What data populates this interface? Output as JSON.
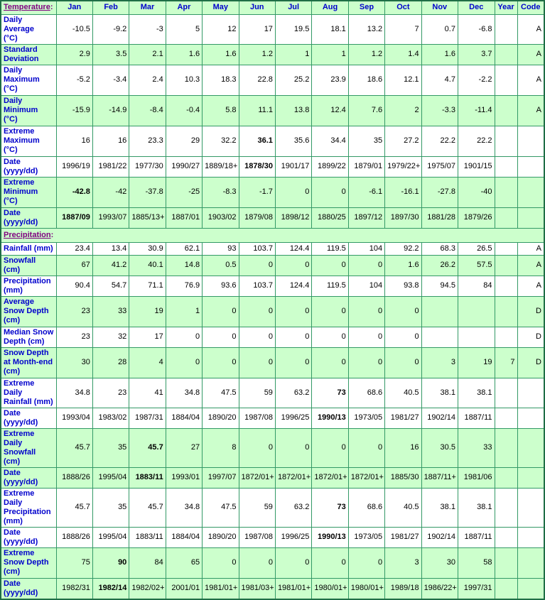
{
  "colors": {
    "row_alt_background": "#CCFFCC",
    "grid_border": "#339966",
    "outer_border": "#1F6E46",
    "row_label_text": "#0000CC",
    "column_header_text": "#0000CC",
    "section_link_text": "#800080",
    "value_text": "#000000"
  },
  "table": {
    "corner": {
      "label": "Temperature",
      "suffix": ":"
    },
    "columns": [
      "Jan",
      "Feb",
      "Mar",
      "Apr",
      "May",
      "Jun",
      "Jul",
      "Aug",
      "Sep",
      "Oct",
      "Nov",
      "Dec",
      "Year",
      "Code"
    ],
    "rows": [
      {
        "label_lines": [
          "Daily Average",
          "(°C)"
        ],
        "shade": false,
        "values": [
          "-10.5",
          "-9.2",
          "-3",
          "5",
          "12",
          "17",
          "19.5",
          "18.1",
          "13.2",
          "7",
          "0.7",
          "-6.8",
          "",
          "A"
        ],
        "bold": []
      },
      {
        "label_lines": [
          "Standard",
          "Deviation"
        ],
        "shade": true,
        "values": [
          "2.9",
          "3.5",
          "2.1",
          "1.6",
          "1.6",
          "1.2",
          "1",
          "1",
          "1.2",
          "1.4",
          "1.6",
          "3.7",
          "",
          "A"
        ],
        "bold": []
      },
      {
        "label_lines": [
          "Daily",
          "Maximum",
          "(°C)"
        ],
        "shade": false,
        "values": [
          "-5.2",
          "-3.4",
          "2.4",
          "10.3",
          "18.3",
          "22.8",
          "25.2",
          "23.9",
          "18.6",
          "12.1",
          "4.7",
          "-2.2",
          "",
          "A"
        ],
        "bold": []
      },
      {
        "label_lines": [
          "Daily",
          "Minimum",
          "(°C)"
        ],
        "shade": true,
        "values": [
          "-15.9",
          "-14.9",
          "-8.4",
          "-0.4",
          "5.8",
          "11.1",
          "13.8",
          "12.4",
          "7.6",
          "2",
          "-3.3",
          "-11.4",
          "",
          "A"
        ],
        "bold": []
      },
      {
        "label_lines": [
          "Extreme",
          "Maximum",
          "(°C)"
        ],
        "shade": false,
        "values": [
          "16",
          "16",
          "23.3",
          "29",
          "32.2",
          "36.1",
          "35.6",
          "34.4",
          "35",
          "27.2",
          "22.2",
          "22.2",
          "",
          ""
        ],
        "bold": [
          5
        ]
      },
      {
        "label_lines": [
          "Date",
          "(yyyy/dd)"
        ],
        "shade": false,
        "values": [
          "1996/19",
          "1981/22",
          "1977/30",
          "1990/27",
          "1889/18+",
          "1878/30",
          "1901/17",
          "1899/22",
          "1879/01",
          "1979/22+",
          "1975/07",
          "1901/15",
          "",
          ""
        ],
        "bold": [
          5
        ]
      },
      {
        "label_lines": [
          "Extreme",
          "Minimum",
          "(°C)"
        ],
        "shade": true,
        "values": [
          "-42.8",
          "-42",
          "-37.8",
          "-25",
          "-8.3",
          "-1.7",
          "0",
          "0",
          "-6.1",
          "-16.1",
          "-27.8",
          "-40",
          "",
          ""
        ],
        "bold": [
          0
        ]
      },
      {
        "label_lines": [
          "Date",
          "(yyyy/dd)"
        ],
        "shade": true,
        "values": [
          "1887/09",
          "1993/07",
          "1885/13+",
          "1887/01",
          "1903/02",
          "1879/08",
          "1898/12",
          "1880/25",
          "1897/12",
          "1897/30",
          "1881/28",
          "1879/26",
          "",
          ""
        ],
        "bold": [
          0
        ]
      },
      {
        "section": true,
        "label": "Precipitation",
        "suffix": ":"
      },
      {
        "label_lines": [
          "Rainfall (mm)"
        ],
        "shade": false,
        "values": [
          "23.4",
          "13.4",
          "30.9",
          "62.1",
          "93",
          "103.7",
          "124.4",
          "119.5",
          "104",
          "92.2",
          "68.3",
          "26.5",
          "",
          "A"
        ],
        "bold": []
      },
      {
        "label_lines": [
          "Snowfall",
          "(cm)"
        ],
        "shade": true,
        "values": [
          "67",
          "41.2",
          "40.1",
          "14.8",
          "0.5",
          "0",
          "0",
          "0",
          "0",
          "1.6",
          "26.2",
          "57.5",
          "",
          "A"
        ],
        "bold": []
      },
      {
        "label_lines": [
          "Precipitation",
          "(mm)"
        ],
        "shade": false,
        "values": [
          "90.4",
          "54.7",
          "71.1",
          "76.9",
          "93.6",
          "103.7",
          "124.4",
          "119.5",
          "104",
          "93.8",
          "94.5",
          "84",
          "",
          "A"
        ],
        "bold": []
      },
      {
        "label_lines": [
          "Average",
          "Snow Depth",
          "(cm)"
        ],
        "shade": true,
        "values": [
          "23",
          "33",
          "19",
          "1",
          "0",
          "0",
          "0",
          "0",
          "0",
          "0",
          "",
          "",
          "",
          "D"
        ],
        "bold": []
      },
      {
        "label_lines": [
          "Median Snow",
          "Depth (cm)"
        ],
        "shade": false,
        "values": [
          "23",
          "32",
          "17",
          "0",
          "0",
          "0",
          "0",
          "0",
          "0",
          "0",
          "",
          "",
          "",
          "D"
        ],
        "bold": []
      },
      {
        "label_lines": [
          "Snow Depth",
          "at Month-end",
          "(cm)"
        ],
        "shade": true,
        "values": [
          "30",
          "28",
          "4",
          "0",
          "0",
          "0",
          "0",
          "0",
          "0",
          "0",
          "3",
          "19",
          "7",
          "D"
        ],
        "bold": []
      },
      {
        "label_lines": [
          "Extreme Daily",
          "Rainfall (mm)"
        ],
        "shade": false,
        "values": [
          "34.8",
          "23",
          "41",
          "34.8",
          "47.5",
          "59",
          "63.2",
          "73",
          "68.6",
          "40.5",
          "38.1",
          "38.1",
          "",
          ""
        ],
        "bold": [
          7
        ]
      },
      {
        "label_lines": [
          "Date",
          "(yyyy/dd)"
        ],
        "shade": false,
        "values": [
          "1993/04",
          "1983/02",
          "1987/31",
          "1884/04",
          "1890/20",
          "1987/08",
          "1996/25",
          "1990/13",
          "1973/05",
          "1981/27",
          "1902/14",
          "1887/11",
          "",
          ""
        ],
        "bold": [
          7
        ]
      },
      {
        "label_lines": [
          "Extreme Daily",
          "Snowfall",
          "(cm)"
        ],
        "shade": true,
        "values": [
          "45.7",
          "35",
          "45.7",
          "27",
          "8",
          "0",
          "0",
          "0",
          "0",
          "16",
          "30.5",
          "33",
          "",
          ""
        ],
        "bold": [
          2
        ]
      },
      {
        "label_lines": [
          "Date",
          "(yyyy/dd)"
        ],
        "shade": true,
        "values": [
          "1888/26",
          "1995/04",
          "1883/11",
          "1993/01",
          "1997/07",
          "1872/01+",
          "1872/01+",
          "1872/01+",
          "1872/01+",
          "1885/30",
          "1887/11+",
          "1981/06",
          "",
          ""
        ],
        "bold": [
          2
        ]
      },
      {
        "label_lines": [
          "Extreme Daily",
          "Precipitation",
          "(mm)"
        ],
        "shade": false,
        "values": [
          "45.7",
          "35",
          "45.7",
          "34.8",
          "47.5",
          "59",
          "63.2",
          "73",
          "68.6",
          "40.5",
          "38.1",
          "38.1",
          "",
          ""
        ],
        "bold": [
          7
        ]
      },
      {
        "label_lines": [
          "Date",
          "(yyyy/dd)"
        ],
        "shade": false,
        "values": [
          "1888/26",
          "1995/04",
          "1883/11",
          "1884/04",
          "1890/20",
          "1987/08",
          "1996/25",
          "1990/13",
          "1973/05",
          "1981/27",
          "1902/14",
          "1887/11",
          "",
          ""
        ],
        "bold": [
          7
        ]
      },
      {
        "label_lines": [
          "Extreme",
          "Snow Depth",
          "(cm)"
        ],
        "shade": true,
        "values": [
          "75",
          "90",
          "84",
          "65",
          "0",
          "0",
          "0",
          "0",
          "0",
          "3",
          "30",
          "58",
          "",
          ""
        ],
        "bold": [
          1
        ]
      },
      {
        "label_lines": [
          "Date",
          "(yyyy/dd)"
        ],
        "shade": true,
        "values": [
          "1982/31",
          "1982/14",
          "1982/02+",
          "2001/01",
          "1981/01+",
          "1981/03+",
          "1981/01+",
          "1980/01+",
          "1980/01+",
          "1989/18",
          "1986/22+",
          "1997/31",
          "",
          ""
        ],
        "bold": [
          1
        ]
      }
    ]
  }
}
